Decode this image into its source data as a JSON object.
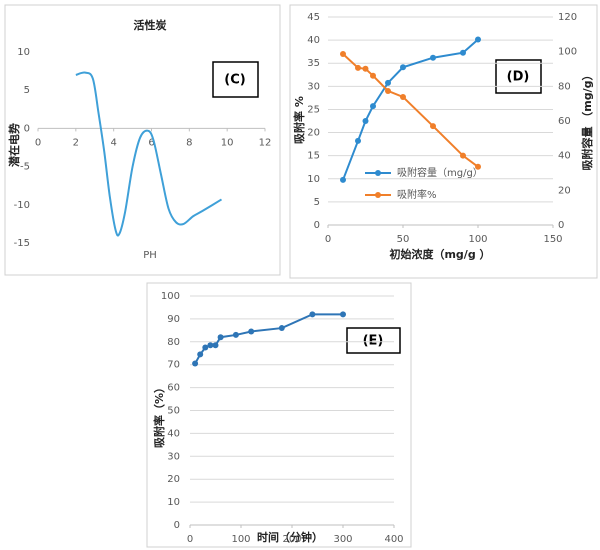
{
  "chart_data": [
    {
      "type": "line",
      "title": "活性炭",
      "panel_label": "(C)",
      "xlabel": "PH",
      "ylabel": "潜在电势",
      "x": [
        2,
        2.5,
        2.9,
        3.2,
        3.5,
        3.8,
        4.1,
        4.3,
        4.6,
        5.0,
        5.4,
        5.8,
        6.1,
        6.5,
        6.9,
        7.3,
        7.7,
        8.2,
        8.7,
        9.7
      ],
      "series": [
        {
          "color": "#3fa0d8",
          "values": [
            7.0,
            7.3,
            6.5,
            2,
            -3,
            -9,
            -13.3,
            -13.8,
            -11,
            -5,
            -1.2,
            -0.3,
            -1.5,
            -6,
            -10.5,
            -12.3,
            -12.5,
            -11.5,
            -10.8,
            -9.3
          ]
        }
      ],
      "xlim": [
        0,
        12
      ],
      "xticks": [
        0,
        2,
        4,
        6,
        8,
        10,
        12
      ],
      "ylim": [
        -15,
        10
      ],
      "yticks": [
        -15,
        -10,
        -5,
        0,
        5,
        10
      ],
      "grid": false,
      "smooth": true,
      "markers": false
    },
    {
      "type": "line",
      "panel_label": "(D)",
      "xlabel": "初始浓度（mg/g ）",
      "ylabel": "吸附率 %",
      "y2label": "吸附容量 （mg/g）",
      "x": [
        10,
        20,
        25,
        30,
        40,
        50,
        70,
        90,
        100
      ],
      "series": [
        {
          "name": "吸附容量（mg/g）",
          "color": "#2e8bcf",
          "axis": "y2",
          "values": [
            26,
            48.5,
            60,
            68.6,
            82,
            91,
            96.5,
            99.4,
            107
          ]
        },
        {
          "name": "吸附率%",
          "color": "#f07f2a",
          "values": [
            37.0,
            34.0,
            33.8,
            32.3,
            29.0,
            27.7,
            21.4,
            15,
            12.6
          ]
        }
      ],
      "xlim": [
        0,
        150
      ],
      "xticks": [
        0,
        50,
        100,
        150
      ],
      "ylim": [
        0,
        45
      ],
      "yticks": [
        0,
        5,
        10,
        15,
        20,
        25,
        30,
        35,
        40,
        45
      ],
      "y2lim": [
        0,
        120
      ],
      "y2ticks": [
        0,
        20,
        40,
        60,
        80,
        100,
        120
      ],
      "grid": true,
      "smooth": false,
      "markers": true
    },
    {
      "type": "line",
      "panel_label": "(E)",
      "xlabel": "时间（分钟）",
      "ylabel": "吸附率（%）",
      "x": [
        10,
        20,
        30,
        40,
        50,
        60,
        90,
        120,
        180,
        240,
        300
      ],
      "series": [
        {
          "color": "#2e75b6",
          "values": [
            70.5,
            74.5,
            77.5,
            78.5,
            78.5,
            82,
            83,
            84.5,
            86,
            92,
            92
          ]
        }
      ],
      "xlim": [
        0,
        400
      ],
      "xticks": [
        0,
        100,
        200,
        300,
        400
      ],
      "ylim": [
        0,
        100
      ],
      "yticks": [
        0,
        10,
        20,
        30,
        40,
        50,
        60,
        70,
        80,
        90,
        100
      ],
      "grid": true,
      "smooth": false,
      "markers": true
    }
  ]
}
